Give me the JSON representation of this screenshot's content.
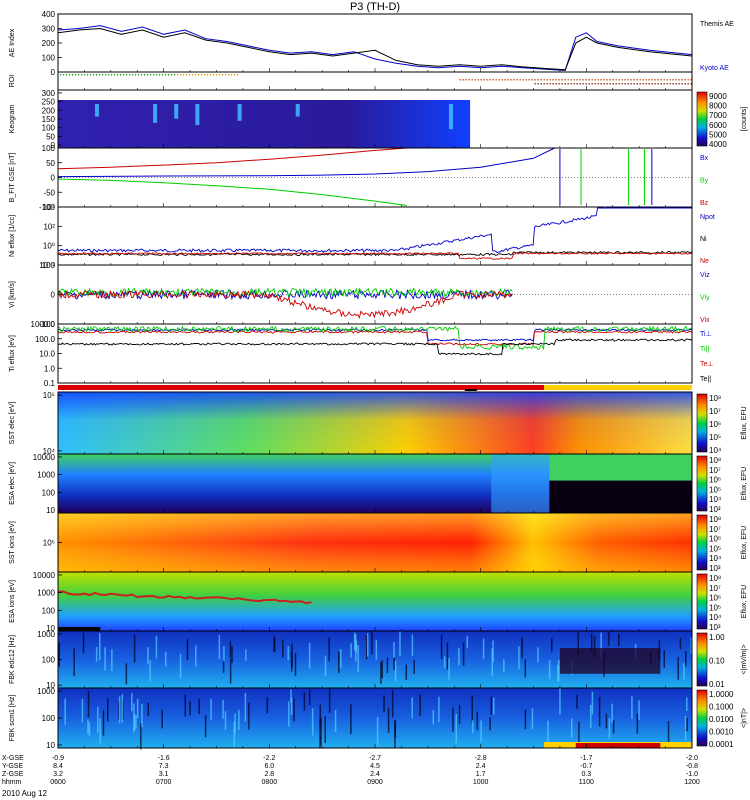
{
  "chart_data": {
    "title": "P3 (TH-D)",
    "date": "2010 Aug 12",
    "time_axis": {
      "row_labels": [
        "X-GSE",
        "Y-GSE",
        "Z-GSE",
        "hhmm"
      ],
      "ticks": [
        {
          "x": "-0.9",
          "y": "8.4",
          "z": "3.2",
          "t": "0600"
        },
        {
          "x": "-1.6",
          "y": "7.3",
          "z": "3.1",
          "t": "0700"
        },
        {
          "x": "-2.2",
          "y": "6.0",
          "z": "2.8",
          "t": "0800"
        },
        {
          "x": "-2.7",
          "y": "4.5",
          "z": "2.4",
          "t": "0900"
        },
        {
          "x": "-2.8",
          "y": "2.4",
          "z": "1.7",
          "t": "1000"
        },
        {
          "x": "-1.7",
          "y": "-0.7",
          "z": "0.3",
          "t": "1100"
        },
        {
          "x": "-2.0",
          "y": "-0.8",
          "z": "-1.0",
          "t": "1200"
        }
      ],
      "range_hours": [
        6,
        12
      ]
    },
    "panels": [
      {
        "id": "ae",
        "type": "line",
        "ylabel": "AE Index",
        "ylim": [
          0,
          400
        ],
        "yticks": [
          "0",
          "100",
          "200",
          "300",
          "400"
        ],
        "series": [
          {
            "name": "Kyoto AE",
            "color": "#0000cc",
            "x": [
              6.0,
              6.2,
              6.4,
              6.6,
              6.8,
              7.0,
              7.2,
              7.4,
              7.6,
              7.8,
              8.0,
              8.2,
              8.4,
              8.6,
              8.8,
              9.0,
              9.2,
              9.4,
              9.6,
              9.8,
              10.0,
              10.2,
              10.4,
              10.6,
              10.8,
              10.9,
              11.0,
              11.1,
              11.3,
              11.6,
              12.0
            ],
            "y": [
              290,
              300,
              320,
              280,
              310,
              260,
              290,
              230,
              210,
              180,
              150,
              130,
              140,
              120,
              140,
              90,
              60,
              40,
              30,
              40,
              30,
              40,
              30,
              20,
              10,
              240,
              270,
              210,
              180,
              150,
              120
            ]
          },
          {
            "name": "Themis AE",
            "color": "#000000",
            "x": [
              6.0,
              6.2,
              6.4,
              6.6,
              6.8,
              7.0,
              7.2,
              7.4,
              7.6,
              7.8,
              8.0,
              8.2,
              8.4,
              8.6,
              8.8,
              9.0,
              9.2,
              9.4,
              9.6,
              9.8,
              10.0,
              10.2,
              10.4,
              10.6,
              10.8,
              10.9,
              11.0,
              11.1,
              11.3,
              11.6,
              12.0
            ],
            "y": [
              270,
              290,
              300,
              260,
              290,
              240,
              270,
              220,
              200,
              170,
              140,
              120,
              130,
              110,
              130,
              150,
              80,
              50,
              40,
              50,
              40,
              50,
              35,
              25,
              15,
              200,
              240,
              200,
              170,
              140,
              110
            ]
          }
        ]
      },
      {
        "id": "roi",
        "type": "flags",
        "ylabel": "ROI"
      },
      {
        "id": "keogram",
        "type": "heatmap",
        "ylabel": "Keogram",
        "yticks": [
          "0",
          "50",
          "100",
          "150",
          "200",
          "250",
          "300"
        ],
        "colorbar": {
          "ticks": [
            "4000",
            "5000",
            "6000",
            "7000",
            "8000",
            "9000"
          ],
          "label": "[counts]"
        }
      },
      {
        "id": "bfit",
        "type": "line",
        "ylabel": "B_FIT GSE [nT]",
        "ylim": [
          -100,
          100
        ],
        "yticks": [
          "-100",
          "-50",
          "0",
          "50",
          "100"
        ],
        "series": [
          {
            "name": "Bz",
            "color": "#cc0000",
            "x": [
              6.0,
              6.5,
              7.0,
              7.5,
              8.0,
              8.5,
              9.0,
              9.3
            ],
            "y": [
              30,
              35,
              42,
              50,
              62,
              76,
              92,
              100
            ]
          },
          {
            "name": "By",
            "color": "#00cc00",
            "x": [
              6.0,
              6.5,
              7.0,
              7.5,
              8.0,
              8.5,
              9.0,
              9.3
            ],
            "y": [
              -5,
              -10,
              -18,
              -28,
              -40,
              -58,
              -80,
              -95
            ]
          },
          {
            "name": "Bx",
            "color": "#0000cc",
            "x": [
              6.0,
              7.0,
              8.0,
              8.5,
              9.0,
              9.5,
              10.0,
              10.5,
              10.7
            ],
            "y": [
              3,
              5,
              6,
              8,
              12,
              20,
              35,
              65,
              100
            ]
          }
        ]
      },
      {
        "id": "density",
        "type": "line",
        "ylabel": "Ni eflux [1/cc]",
        "yticks": [
          "10⁻²",
          "10⁰",
          "10²",
          "10⁴"
        ],
        "series": [
          {
            "name": "Ne",
            "color": "#cc0000"
          },
          {
            "name": "Ni",
            "color": "#000000"
          },
          {
            "name": "Npot",
            "color": "#0000cc"
          }
        ]
      },
      {
        "id": "velocity",
        "type": "line",
        "ylabel": "Vi [km/s]",
        "ylim": [
          -150,
          150
        ],
        "yticks": [
          "-100",
          "0",
          "100"
        ],
        "series": [
          {
            "name": "Vix",
            "color": "#cc0000"
          },
          {
            "name": "Viy",
            "color": "#00cc00"
          },
          {
            "name": "Viz",
            "color": "#0000cc"
          }
        ]
      },
      {
        "id": "temperature",
        "type": "line",
        "ylabel": "Ti eflux [eV]",
        "yticks": [
          "0.1",
          "1.0",
          "10.0",
          "100.0",
          "1000.0"
        ],
        "series": [
          {
            "name": "Te||",
            "color": "#000000"
          },
          {
            "name": "Te⊥",
            "color": "#cc0000"
          },
          {
            "name": "Ti||",
            "color": "#00cc00"
          },
          {
            "name": "Ti⊥",
            "color": "#0000cc"
          }
        ]
      },
      {
        "id": "sst_e",
        "type": "heatmap",
        "ylabel": "SST elec [eV]",
        "yticks": [
          "10⁴",
          "10⁵"
        ],
        "colorbar": {
          "ticks": [
            "10⁴",
            "10⁵",
            "10⁶",
            "10⁷",
            "10⁸"
          ],
          "label": "Eflux, EFU"
        }
      },
      {
        "id": "esa_e",
        "type": "heatmap",
        "ylabel": "ESA elec [eV]",
        "yticks": [
          "10",
          "100",
          "1000",
          "10000"
        ],
        "colorbar": {
          "ticks": [
            "10³",
            "10⁴",
            "10⁵",
            "10⁶",
            "10⁷",
            "10⁸"
          ],
          "label": "Eflux, EFU"
        }
      },
      {
        "id": "sst_i",
        "type": "heatmap",
        "ylabel": "SST ions [eV]",
        "yticks": [
          "10⁵"
        ],
        "colorbar": {
          "ticks": [
            "10³",
            "10⁴",
            "10⁵",
            "10⁶",
            "10⁷",
            "10⁸"
          ],
          "label": "Eflux, EFU"
        }
      },
      {
        "id": "esa_i",
        "type": "heatmap",
        "ylabel": "ESA ions [eV]",
        "yticks": [
          "10",
          "100",
          "1000",
          "10000"
        ],
        "colorbar": {
          "ticks": [
            "10³",
            "10⁴",
            "10⁵",
            "10⁶",
            "10⁷",
            "10⁸"
          ],
          "label": "Eflux, EFU"
        }
      },
      {
        "id": "fbk_e",
        "type": "heatmap",
        "ylabel": "FBK edc12 [Hz]",
        "yticks": [
          "10",
          "100",
          "1000"
        ],
        "colorbar": {
          "ticks": [
            "0.01",
            "0.10",
            "1.00"
          ],
          "label": "<|mV/m|>"
        }
      },
      {
        "id": "fbk_b",
        "type": "heatmap",
        "ylabel": "FBK scm1 [Hz]",
        "yticks": [
          "10",
          "100",
          "1000"
        ],
        "colorbar": {
          "ticks": [
            "0.0001",
            "0.0010",
            "0.0100",
            "0.1000",
            "1.0000"
          ],
          "label": "<|nT|>"
        }
      }
    ]
  }
}
